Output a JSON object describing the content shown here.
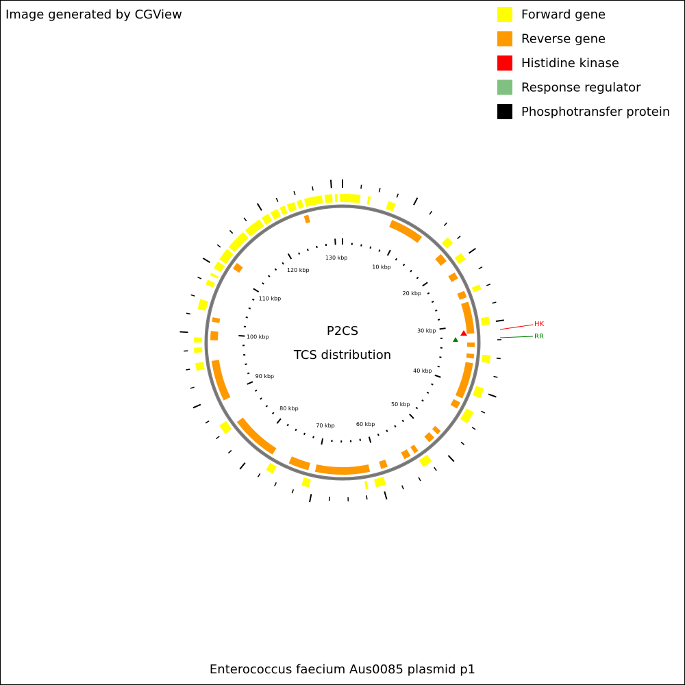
{
  "header": {
    "credit": "Image generated by CGView"
  },
  "legend": {
    "items": [
      {
        "label": "Forward gene",
        "color": "#ffff00"
      },
      {
        "label": "Reverse gene",
        "color": "#ff9900"
      },
      {
        "label": "Histidine kinase",
        "color": "#ff0000"
      },
      {
        "label": "Response regulator",
        "color": "#80c080"
      },
      {
        "label": "Phosphotransfer protein",
        "color": "#000000"
      }
    ]
  },
  "map": {
    "center_title": "P2CS",
    "center_subtitle": "TCS distribution",
    "scale_labels": [
      "10 kbp",
      "20 kbp",
      "30 kbp",
      "40 kbp",
      "50 kbp",
      "60 kbp",
      "70 kbp",
      "80 kbp",
      "90 kbp",
      "100 kbp",
      "110 kbp",
      "120 kbp",
      "130 kbp"
    ],
    "features": [
      {
        "label": "HK",
        "color": "#ff0000"
      },
      {
        "label": "RR",
        "color": "#008000"
      }
    ]
  },
  "footer": {
    "title": "Enterococcus faecium Aus0085 plasmid p1"
  }
}
